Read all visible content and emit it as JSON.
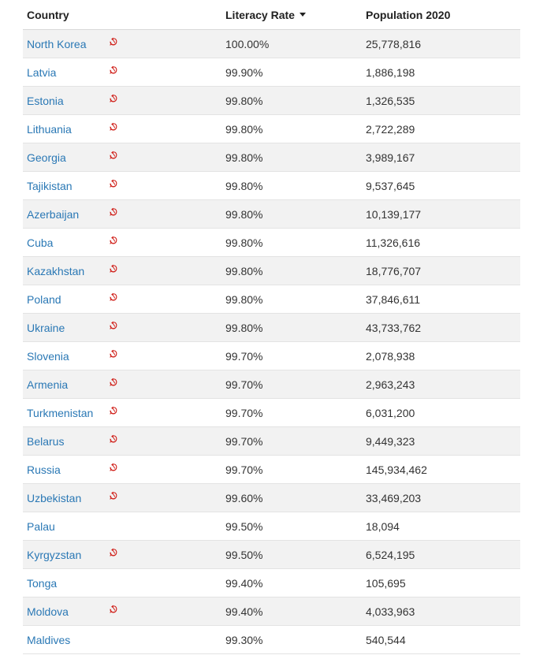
{
  "table": {
    "headers": {
      "country": "Country",
      "literacy": "Literacy Rate",
      "population": "Population 2020"
    },
    "sort": {
      "column": "literacy",
      "direction": "descending"
    },
    "colors": {
      "link": "#2a78b5",
      "icon": "#d0201a",
      "stripe": "#f2f2f2"
    },
    "rows": [
      {
        "country": "North Korea",
        "literacy": "100.00%",
        "population": "25,778,816",
        "icon": "hammer-sickle-icon"
      },
      {
        "country": "Latvia",
        "literacy": "99.90%",
        "population": "1,886,198",
        "icon": "hammer-sickle-icon"
      },
      {
        "country": "Estonia",
        "literacy": "99.80%",
        "population": "1,326,535",
        "icon": "hammer-sickle-icon"
      },
      {
        "country": "Lithuania",
        "literacy": "99.80%",
        "population": "2,722,289",
        "icon": "hammer-sickle-icon"
      },
      {
        "country": "Georgia",
        "literacy": "99.80%",
        "population": "3,989,167",
        "icon": "hammer-sickle-icon"
      },
      {
        "country": "Tajikistan",
        "literacy": "99.80%",
        "population": "9,537,645",
        "icon": "hammer-sickle-icon"
      },
      {
        "country": "Azerbaijan",
        "literacy": "99.80%",
        "population": "10,139,177",
        "icon": "hammer-sickle-icon"
      },
      {
        "country": "Cuba",
        "literacy": "99.80%",
        "population": "11,326,616",
        "icon": "hammer-sickle-icon"
      },
      {
        "country": "Kazakhstan",
        "literacy": "99.80%",
        "population": "18,776,707",
        "icon": "hammer-sickle-icon"
      },
      {
        "country": "Poland",
        "literacy": "99.80%",
        "population": "37,846,611",
        "icon": "hammer-sickle-icon"
      },
      {
        "country": "Ukraine",
        "literacy": "99.80%",
        "population": "43,733,762",
        "icon": "hammer-sickle-icon"
      },
      {
        "country": "Slovenia",
        "literacy": "99.70%",
        "population": "2,078,938",
        "icon": "hammer-sickle-icon"
      },
      {
        "country": "Armenia",
        "literacy": "99.70%",
        "population": "2,963,243",
        "icon": "hammer-sickle-icon"
      },
      {
        "country": "Turkmenistan",
        "literacy": "99.70%",
        "population": "6,031,200",
        "icon": "hammer-sickle-icon"
      },
      {
        "country": "Belarus",
        "literacy": "99.70%",
        "population": "9,449,323",
        "icon": "hammer-sickle-icon"
      },
      {
        "country": "Russia",
        "literacy": "99.70%",
        "population": "145,934,462",
        "icon": "hammer-sickle-icon"
      },
      {
        "country": "Uzbekistan",
        "literacy": "99.60%",
        "population": "33,469,203",
        "icon": "hammer-sickle-icon"
      },
      {
        "country": "Palau",
        "literacy": "99.50%",
        "population": "18,094",
        "icon": null
      },
      {
        "country": "Kyrgyzstan",
        "literacy": "99.50%",
        "population": "6,524,195",
        "icon": "hammer-sickle-icon"
      },
      {
        "country": "Tonga",
        "literacy": "99.40%",
        "population": "105,695",
        "icon": null
      },
      {
        "country": "Moldova",
        "literacy": "99.40%",
        "population": "4,033,963",
        "icon": "hammer-sickle-icon"
      },
      {
        "country": "Maldives",
        "literacy": "99.30%",
        "population": "540,544",
        "icon": null
      }
    ]
  }
}
